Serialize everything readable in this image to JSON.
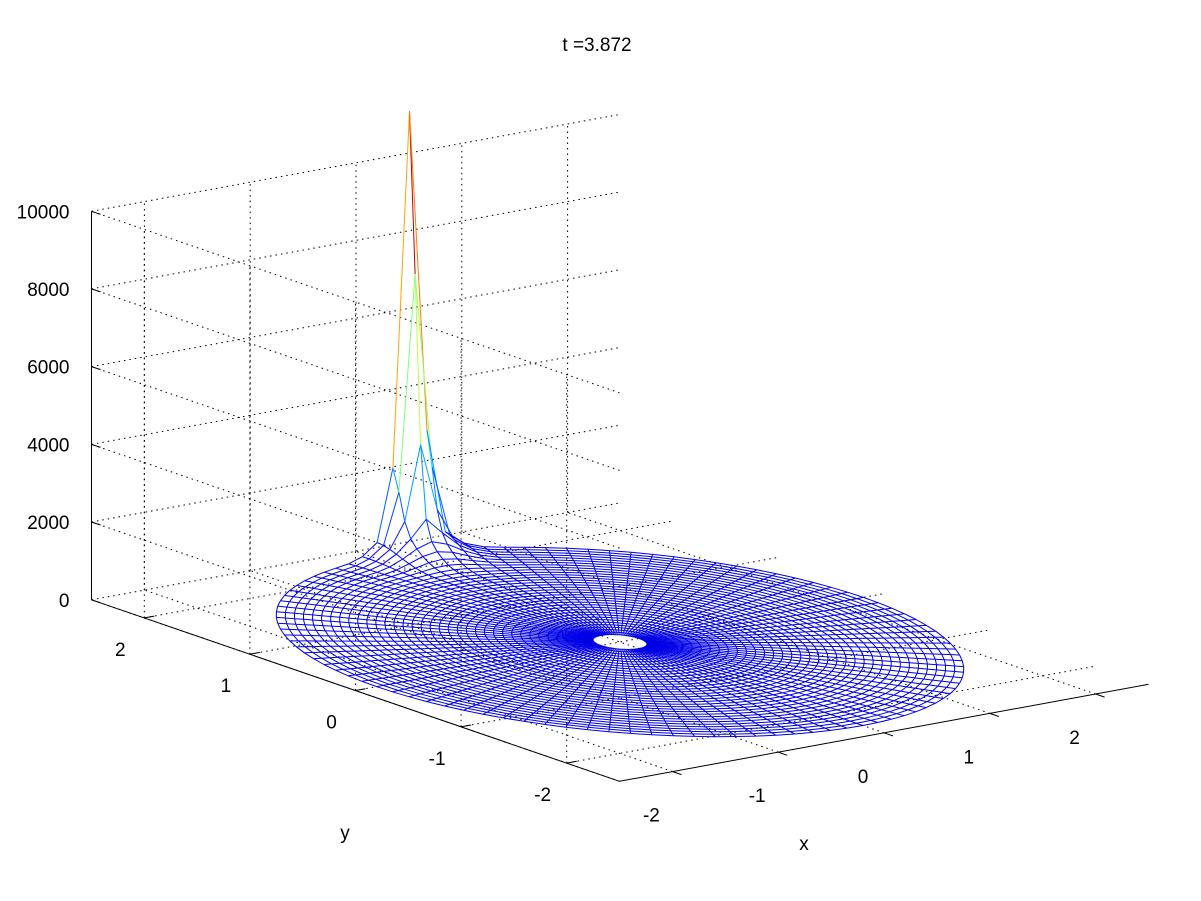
{
  "chart_data": {
    "type": "surface-mesh",
    "title": "t =3.872",
    "xlabel": "x",
    "ylabel": "y",
    "zlabel": "",
    "xlim": [
      -2.5,
      2.5
    ],
    "ylim": [
      -2.5,
      2.5
    ],
    "zlim": [
      0,
      10000
    ],
    "x_ticks": [
      -2,
      -1,
      0,
      1,
      2
    ],
    "y_ticks": [
      -2,
      -1,
      0,
      1,
      2
    ],
    "z_ticks": [
      0,
      2000,
      4000,
      6000,
      8000,
      10000
    ],
    "x_tick_labels": [
      "-2",
      "-1",
      "0",
      "1",
      "2"
    ],
    "y_tick_labels": [
      "-2",
      "-1",
      "0",
      "1",
      "2"
    ],
    "z_tick_labels": [
      "0",
      "2000",
      "4000",
      "6000",
      "8000",
      "10000"
    ],
    "grid": true,
    "colormap": "jet",
    "domain": {
      "shape": "annulus",
      "inner_radius": 0.18,
      "outer_radius": 2.3,
      "radial_lines": 100,
      "rings": 36
    },
    "surface": {
      "baseline": 0,
      "peak": {
        "x": 0.3,
        "y": 2.3,
        "value": 10700
      }
    },
    "colors": {
      "background": "#ffffff",
      "mesh_low": "#00008f",
      "mesh_high": "#800000"
    }
  }
}
